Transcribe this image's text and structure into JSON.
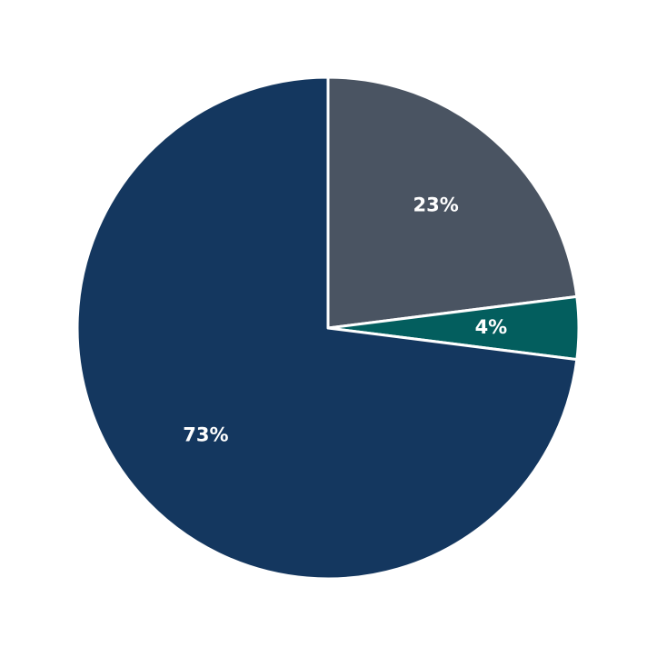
{
  "chart_data": {
    "type": "pie",
    "values": [
      23,
      4,
      73
    ],
    "value_labels": [
      "23%",
      "4%",
      "73%"
    ],
    "colors": [
      "#4a5462",
      "#035e5e",
      "#14375f"
    ],
    "start_angle": 90,
    "direction": "clockwise"
  }
}
